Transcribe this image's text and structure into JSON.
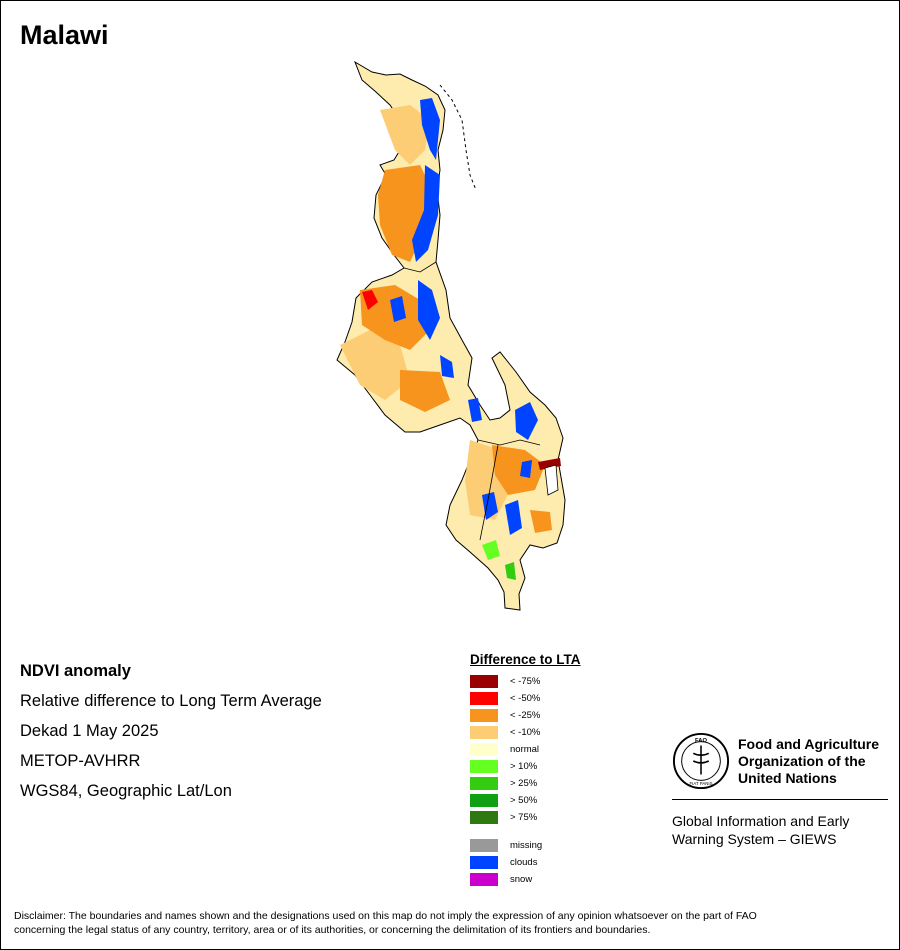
{
  "title": "Malawi",
  "info": {
    "heading": "NDVI anomaly",
    "line1": "Relative difference to Long Term Average",
    "line2": "Dekad 1 May 2025",
    "line3": "METOP-AVHRR",
    "line4": "WGS84, Geographic Lat/Lon"
  },
  "legend": {
    "title": "Difference to LTA",
    "items": [
      {
        "label": "< -75%",
        "color": "#9b0000"
      },
      {
        "label": "< -50%",
        "color": "#ff0000"
      },
      {
        "label": "< -25%",
        "color": "#f7941d"
      },
      {
        "label": "< -10%",
        "color": "#fccd74"
      },
      {
        "label": "normal",
        "color": "#ffffcc"
      },
      {
        "label": "> 10%",
        "color": "#66ff22"
      },
      {
        "label": "> 25%",
        "color": "#33cc11"
      },
      {
        "label": "> 50%",
        "color": "#11a011"
      },
      {
        "label": "> 75%",
        "color": "#2e7a10"
      }
    ],
    "extra": [
      {
        "label": "missing",
        "color": "#999999"
      },
      {
        "label": "clouds",
        "color": "#0044ff"
      },
      {
        "label": "snow",
        "color": "#cc00cc"
      }
    ]
  },
  "fao": {
    "name1": "Food and Agriculture",
    "name2": "Organization of the",
    "name3": "United Nations",
    "logo_text": "FAO",
    "motto": "FIAT PANIS",
    "giews1": "Global Information and Early",
    "giews2": "Warning System – GIEWS"
  },
  "disclaimer": {
    "line1": "Disclaimer: The boundaries and names shown and the designations used on this map do not imply the expression of any opinion whatsoever on the part of FAO",
    "line2": "concerning the legal status of any country, territory, area or of its authorities, or concerning the delimitation of its frontiers and boundaries."
  }
}
